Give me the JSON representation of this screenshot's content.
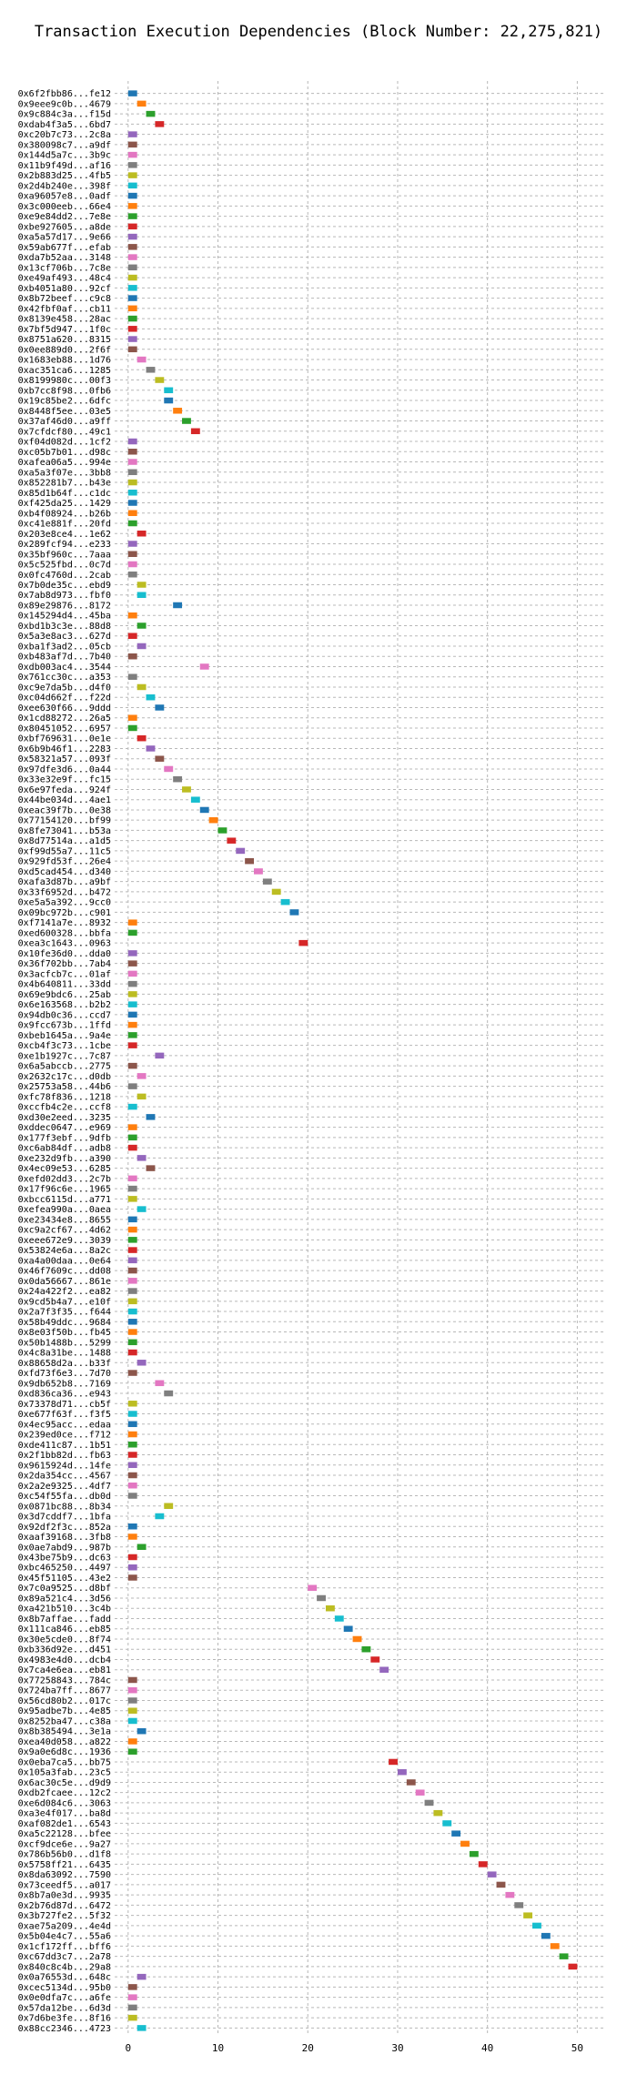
{
  "chart_data": {
    "type": "bar",
    "orientation": "horizontal",
    "title": "Transaction Execution Dependencies (Block Number: 22,275,821)",
    "xlabel": "",
    "ylabel": "",
    "xlim": [
      -1.5,
      53
    ],
    "xticks": [
      0,
      10,
      20,
      30,
      40,
      50
    ],
    "grid": true,
    "bar_length": 1,
    "palette": [
      "#1f77b4",
      "#ff7f0e",
      "#2ca02c",
      "#d62728",
      "#9467bd",
      "#8c564b",
      "#e377c2",
      "#7f7f7f",
      "#bcbd22",
      "#17becf"
    ],
    "transactions": [
      {
        "hash": "0x6f2fbb86...fe12",
        "start": 0
      },
      {
        "hash": "0x9eee9c0b...4679",
        "start": 1
      },
      {
        "hash": "0x9c884c3a...f15d",
        "start": 2
      },
      {
        "hash": "0xdab4f3a5...6bd7",
        "start": 3
      },
      {
        "hash": "0xc20b7c73...2c8a",
        "start": 0
      },
      {
        "hash": "0x380098c7...a9df",
        "start": 0
      },
      {
        "hash": "0x144d5a7c...3b9c",
        "start": 0
      },
      {
        "hash": "0x11b9f49d...af16",
        "start": 0
      },
      {
        "hash": "0x2b883d25...4fb5",
        "start": 0
      },
      {
        "hash": "0x2d4b240e...398f",
        "start": 0
      },
      {
        "hash": "0xa96057e8...0adf",
        "start": 0
      },
      {
        "hash": "0x3c000eeb...66e4",
        "start": 0
      },
      {
        "hash": "0xe9e84dd2...7e8e",
        "start": 0
      },
      {
        "hash": "0xbe927605...a8de",
        "start": 0
      },
      {
        "hash": "0xa5a57d17...9e66",
        "start": 0
      },
      {
        "hash": "0x59ab677f...efab",
        "start": 0
      },
      {
        "hash": "0xda7b52aa...3148",
        "start": 0
      },
      {
        "hash": "0x13cf706b...7c8e",
        "start": 0
      },
      {
        "hash": "0xe49af493...48c4",
        "start": 0
      },
      {
        "hash": "0xb4051a80...92cf",
        "start": 0
      },
      {
        "hash": "0x8b72beef...c9c8",
        "start": 0
      },
      {
        "hash": "0x42fbf0af...cb11",
        "start": 0
      },
      {
        "hash": "0x8139e458...28ac",
        "start": 0
      },
      {
        "hash": "0x7bf5d947...1f0c",
        "start": 0
      },
      {
        "hash": "0x8751a620...8315",
        "start": 0
      },
      {
        "hash": "0x0ee889d0...2f6f",
        "start": 0
      },
      {
        "hash": "0x1683eb88...1d76",
        "start": 1
      },
      {
        "hash": "0xac351ca6...1285",
        "start": 2
      },
      {
        "hash": "0x8199980c...00f3",
        "start": 3
      },
      {
        "hash": "0xb7cc8f98...0fb6",
        "start": 4
      },
      {
        "hash": "0x19c85be2...6dfc",
        "start": 4
      },
      {
        "hash": "0x8448f5ee...03e5",
        "start": 5
      },
      {
        "hash": "0x37af46d0...a9ff",
        "start": 6
      },
      {
        "hash": "0x7cfdcf80...49c1",
        "start": 7
      },
      {
        "hash": "0xf04d082d...1cf2",
        "start": 0
      },
      {
        "hash": "0xc05b7b01...d98c",
        "start": 0
      },
      {
        "hash": "0xafea06a5...994e",
        "start": 0
      },
      {
        "hash": "0xa5a3f07e...3bb8",
        "start": 0
      },
      {
        "hash": "0x852281b7...b43e",
        "start": 0
      },
      {
        "hash": "0x85d1b64f...c1dc",
        "start": 0
      },
      {
        "hash": "0xf425da25...1429",
        "start": 0
      },
      {
        "hash": "0xb4f08924...b26b",
        "start": 0
      },
      {
        "hash": "0xc41e881f...20fd",
        "start": 0
      },
      {
        "hash": "0x203e8ce4...1e62",
        "start": 1
      },
      {
        "hash": "0x289fcf94...e233",
        "start": 0
      },
      {
        "hash": "0x35bf960c...7aaa",
        "start": 0
      },
      {
        "hash": "0x5c525fbd...0c7d",
        "start": 0
      },
      {
        "hash": "0x0fc4760d...2cab",
        "start": 0
      },
      {
        "hash": "0x7b0de35c...ebd9",
        "start": 1
      },
      {
        "hash": "0x7ab8d973...fbf0",
        "start": 1
      },
      {
        "hash": "0x89e29876...8172",
        "start": 5
      },
      {
        "hash": "0x145294d4...45ba",
        "start": 0
      },
      {
        "hash": "0xbd1b3c3e...88d8",
        "start": 1
      },
      {
        "hash": "0x5a3e8ac3...627d",
        "start": 0
      },
      {
        "hash": "0xba1f3ad2...05cb",
        "start": 1
      },
      {
        "hash": "0xb483af7d...7b40",
        "start": 0
      },
      {
        "hash": "0xdb003ac4...3544",
        "start": 8
      },
      {
        "hash": "0x761cc30c...a353",
        "start": 0
      },
      {
        "hash": "0xc9e7da5b...d4f0",
        "start": 1
      },
      {
        "hash": "0xc04d662f...f22d",
        "start": 2
      },
      {
        "hash": "0xee630f66...9ddd",
        "start": 3
      },
      {
        "hash": "0x1cd88272...26a5",
        "start": 0
      },
      {
        "hash": "0x80451052...6957",
        "start": 0
      },
      {
        "hash": "0xbf769631...0e1e",
        "start": 1
      },
      {
        "hash": "0x6b9b46f1...2283",
        "start": 2
      },
      {
        "hash": "0x58321a57...093f",
        "start": 3
      },
      {
        "hash": "0x97dfe3d6...0a44",
        "start": 4
      },
      {
        "hash": "0x33e32e9f...fc15",
        "start": 5
      },
      {
        "hash": "0x6e97feda...924f",
        "start": 6
      },
      {
        "hash": "0x44be034d...4ae1",
        "start": 7
      },
      {
        "hash": "0xeac39f7b...0e38",
        "start": 8
      },
      {
        "hash": "0x77154120...bf99",
        "start": 9
      },
      {
        "hash": "0x8fe73041...b53a",
        "start": 10
      },
      {
        "hash": "0x8d77514a...a1d5",
        "start": 11
      },
      {
        "hash": "0xf99d55a7...11c5",
        "start": 12
      },
      {
        "hash": "0x929fd53f...26e4",
        "start": 13
      },
      {
        "hash": "0xd5cad454...d340",
        "start": 14
      },
      {
        "hash": "0xafa3d87b...a9bf",
        "start": 15
      },
      {
        "hash": "0x33f6952d...b472",
        "start": 16
      },
      {
        "hash": "0xe5a5a392...9cc0",
        "start": 17
      },
      {
        "hash": "0x09bc972b...c901",
        "start": 18
      },
      {
        "hash": "0xf7141a7e...8932",
        "start": 0
      },
      {
        "hash": "0xed600328...bbfa",
        "start": 0
      },
      {
        "hash": "0xea3c1643...0963",
        "start": 19
      },
      {
        "hash": "0x10fe36d0...dda0",
        "start": 0
      },
      {
        "hash": "0x36f702bb...7ab4",
        "start": 0
      },
      {
        "hash": "0x3acfcb7c...01af",
        "start": 0
      },
      {
        "hash": "0x4b640811...33dd",
        "start": 0
      },
      {
        "hash": "0x69e9bdc6...25ab",
        "start": 0
      },
      {
        "hash": "0x6e163568...b2b2",
        "start": 0
      },
      {
        "hash": "0x94db0c36...ccd7",
        "start": 0
      },
      {
        "hash": "0x9fcc673b...1ffd",
        "start": 0
      },
      {
        "hash": "0xbeb1645a...9a4e",
        "start": 0
      },
      {
        "hash": "0xcb4f3c73...1cbe",
        "start": 0
      },
      {
        "hash": "0xe1b1927c...7c87",
        "start": 3
      },
      {
        "hash": "0x6a5abccb...2775",
        "start": 0
      },
      {
        "hash": "0x2632c17c...d0db",
        "start": 1
      },
      {
        "hash": "0x25753a58...44b6",
        "start": 0
      },
      {
        "hash": "0xfc78f836...1218",
        "start": 1
      },
      {
        "hash": "0xccfb4c2e...ccf8",
        "start": 0
      },
      {
        "hash": "0xd30e2eed...3235",
        "start": 2
      },
      {
        "hash": "0xddec0647...e969",
        "start": 0
      },
      {
        "hash": "0x177f3ebf...9dfb",
        "start": 0
      },
      {
        "hash": "0xc6ab84df...adb8",
        "start": 0
      },
      {
        "hash": "0xe232d9fb...a390",
        "start": 1
      },
      {
        "hash": "0x4ec09e53...6285",
        "start": 2
      },
      {
        "hash": "0xefd02dd3...2c7b",
        "start": 0
      },
      {
        "hash": "0x17f96c6e...1965",
        "start": 0
      },
      {
        "hash": "0xbcc6115d...a771",
        "start": 0
      },
      {
        "hash": "0xefea990a...0aea",
        "start": 1
      },
      {
        "hash": "0xe23434e8...8655",
        "start": 0
      },
      {
        "hash": "0xc9a2cf67...4d62",
        "start": 0
      },
      {
        "hash": "0xeee672e9...3039",
        "start": 0
      },
      {
        "hash": "0x53824e6a...8a2c",
        "start": 0
      },
      {
        "hash": "0xa4a00daa...0e64",
        "start": 0
      },
      {
        "hash": "0x46f7609c...dd08",
        "start": 0
      },
      {
        "hash": "0x0da56667...861e",
        "start": 0
      },
      {
        "hash": "0x24a422f2...ea82",
        "start": 0
      },
      {
        "hash": "0x9cd5b4a7...e10f",
        "start": 0
      },
      {
        "hash": "0x2a7f3f35...f644",
        "start": 0
      },
      {
        "hash": "0x58b49ddc...9684",
        "start": 0
      },
      {
        "hash": "0x8e03f50b...fb45",
        "start": 0
      },
      {
        "hash": "0x50b1488b...5299",
        "start": 0
      },
      {
        "hash": "0x4c8a31be...1488",
        "start": 0
      },
      {
        "hash": "0x88658d2a...b33f",
        "start": 1
      },
      {
        "hash": "0xfd73f6e3...7d70",
        "start": 0
      },
      {
        "hash": "0x9db652b8...7169",
        "start": 3
      },
      {
        "hash": "0xd836ca36...e943",
        "start": 4
      },
      {
        "hash": "0x73378d71...cb5f",
        "start": 0
      },
      {
        "hash": "0xe677f63f...f3f5",
        "start": 0
      },
      {
        "hash": "0x4ec95acc...edaa",
        "start": 0
      },
      {
        "hash": "0x239ed0ce...f712",
        "start": 0
      },
      {
        "hash": "0xde411c87...1b51",
        "start": 0
      },
      {
        "hash": "0x2f1bb82d...fb63",
        "start": 0
      },
      {
        "hash": "0x9615924d...14fe",
        "start": 0
      },
      {
        "hash": "0x2da354cc...4567",
        "start": 0
      },
      {
        "hash": "0x2a2e9325...4df7",
        "start": 0
      },
      {
        "hash": "0xc54f55fa...db0d",
        "start": 0
      },
      {
        "hash": "0x0871bc88...8b34",
        "start": 4
      },
      {
        "hash": "0x3d7cddf7...1bfa",
        "start": 3
      },
      {
        "hash": "0x92df2f3c...852a",
        "start": 0
      },
      {
        "hash": "0xaaf39168...3fb8",
        "start": 0
      },
      {
        "hash": "0x0ae7abd9...987b",
        "start": 1
      },
      {
        "hash": "0x43be75b9...dc63",
        "start": 0
      },
      {
        "hash": "0xbc465250...4497",
        "start": 0
      },
      {
        "hash": "0x45f51105...43e2",
        "start": 0
      },
      {
        "hash": "0x7c0a9525...d8bf",
        "start": 20
      },
      {
        "hash": "0x89a521c4...3d56",
        "start": 21
      },
      {
        "hash": "0xa421b510...3c4b",
        "start": 22
      },
      {
        "hash": "0x8b7affae...fadd",
        "start": 23
      },
      {
        "hash": "0x111ca846...eb85",
        "start": 24
      },
      {
        "hash": "0x30e5cde0...8f74",
        "start": 25
      },
      {
        "hash": "0xb336d92e...d451",
        "start": 26
      },
      {
        "hash": "0x4983e4d0...dcb4",
        "start": 27
      },
      {
        "hash": "0x7ca4e6ea...eb81",
        "start": 28
      },
      {
        "hash": "0x77258843...784c",
        "start": 0
      },
      {
        "hash": "0x724ba7ff...8677",
        "start": 0
      },
      {
        "hash": "0x56cd80b2...017c",
        "start": 0
      },
      {
        "hash": "0x95adbe7b...4e85",
        "start": 0
      },
      {
        "hash": "0x8252ba47...c38a",
        "start": 0
      },
      {
        "hash": "0x8b385494...3e1a",
        "start": 1
      },
      {
        "hash": "0xea40d058...a822",
        "start": 0
      },
      {
        "hash": "0x9a0e6d8c...1936",
        "start": 0
      },
      {
        "hash": "0x0eba7ca5...bb75",
        "start": 29
      },
      {
        "hash": "0x105a3fab...23c5",
        "start": 30
      },
      {
        "hash": "0x6ac30c5e...d9d9",
        "start": 31
      },
      {
        "hash": "0xdb2fcaee...12c2",
        "start": 32
      },
      {
        "hash": "0xe6d084c6...3063",
        "start": 33
      },
      {
        "hash": "0xa3e4f017...ba8d",
        "start": 34
      },
      {
        "hash": "0xaf082de1...6543",
        "start": 35
      },
      {
        "hash": "0xa5c22128...bfee",
        "start": 36
      },
      {
        "hash": "0xcf9dce6e...9a27",
        "start": 37
      },
      {
        "hash": "0x786b56b0...d1f8",
        "start": 38
      },
      {
        "hash": "0x5758ff21...6435",
        "start": 39
      },
      {
        "hash": "0x8da63092...7590",
        "start": 40
      },
      {
        "hash": "0x73ceedf5...a017",
        "start": 41
      },
      {
        "hash": "0x8b7a0e3d...9935",
        "start": 42
      },
      {
        "hash": "0x2b76d87d...6472",
        "start": 43
      },
      {
        "hash": "0x3b727fe2...5f32",
        "start": 44
      },
      {
        "hash": "0xae75a209...4e4d",
        "start": 45
      },
      {
        "hash": "0x5b04e4c7...55a6",
        "start": 46
      },
      {
        "hash": "0x1cf172ff...bff6",
        "start": 47
      },
      {
        "hash": "0xc67dd3c7...2a78",
        "start": 48
      },
      {
        "hash": "0x840c8c4b...29a8",
        "start": 49
      },
      {
        "hash": "0x0a76553d...648c",
        "start": 1
      },
      {
        "hash": "0xcec5134d...95b0",
        "start": 0
      },
      {
        "hash": "0x0e0dfa7c...a6fe",
        "start": 0
      },
      {
        "hash": "0x57da12be...6d3d",
        "start": 0
      },
      {
        "hash": "0x7d6be3fe...8f16",
        "start": 0
      },
      {
        "hash": "0x88cc2346...4723",
        "start": 1
      }
    ]
  }
}
